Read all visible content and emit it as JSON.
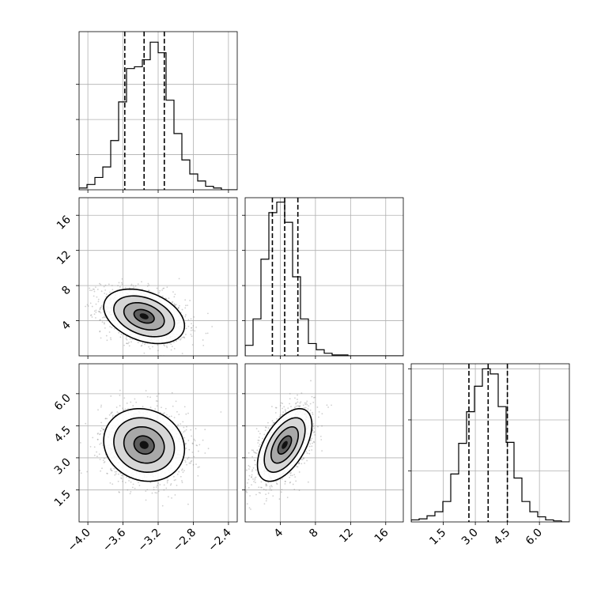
{
  "chart_data": {
    "type": "corner",
    "title": "",
    "parameters": [
      {
        "index": 0,
        "xlim": [
          -4.1,
          -2.3
        ],
        "ticks": [
          -4.0,
          -3.6,
          -3.2,
          -2.8,
          -2.4
        ],
        "tick_labels": [
          "−4.0",
          "−3.6",
          "−3.2",
          "−2.8",
          "−2.4"
        ],
        "quantiles": [
          -3.58,
          -3.36,
          -3.13
        ]
      },
      {
        "index": 1,
        "xlim": [
          0.0,
          18.0
        ],
        "ticks": [
          4,
          8,
          12,
          16
        ],
        "tick_labels": [
          "4",
          "8",
          "12",
          "16"
        ],
        "quantiles": [
          3.1,
          4.5,
          6.0
        ]
      },
      {
        "index": 2,
        "xlim": [
          0.0,
          7.4
        ],
        "ticks": [
          1.5,
          3.0,
          4.5,
          6.0
        ],
        "tick_labels": [
          "1.5",
          "3.0",
          "4.5",
          "6.0"
        ],
        "quantiles": [
          2.7,
          3.6,
          4.5
        ]
      }
    ],
    "histograms": [
      {
        "param": 0,
        "bin_start": -4.1,
        "bin_width": 0.09,
        "counts": [
          1,
          3,
          7,
          13,
          28,
          50,
          69,
          70,
          74,
          84,
          78,
          51,
          32,
          17,
          9,
          5,
          2,
          1,
          0,
          0
        ],
        "ymax": 90,
        "yticks": [
          20,
          40,
          60
        ]
      },
      {
        "param": 1,
        "bin_start": 0.0,
        "bin_width": 0.9,
        "counts": [
          12,
          42,
          110,
          163,
          175,
          152,
          90,
          42,
          14,
          7,
          3,
          1,
          1,
          0,
          0,
          0,
          0,
          0,
          0,
          0
        ],
        "ymax": 180,
        "yticks": [
          40,
          80,
          120,
          160
        ]
      },
      {
        "param": 2,
        "bin_start": 0.0,
        "bin_width": 0.37,
        "counts": [
          2,
          3,
          6,
          10,
          20,
          47,
          77,
          108,
          133,
          150,
          145,
          113,
          78,
          43,
          20,
          10,
          5,
          2,
          1,
          0
        ],
        "ymax": 155,
        "yticks": [
          50,
          100,
          150
        ]
      }
    ],
    "pairs": [
      {
        "x_param": 0,
        "y_param": 1,
        "mean": [
          -3.36,
          4.5
        ],
        "sd": [
          0.23,
          1.55
        ],
        "rho": -0.35
      },
      {
        "x_param": 0,
        "y_param": 2,
        "mean": [
          -3.36,
          3.6
        ],
        "sd": [
          0.23,
          0.85
        ],
        "rho": -0.12
      },
      {
        "x_param": 1,
        "y_param": 2,
        "mean": [
          4.5,
          3.6
        ],
        "sd": [
          1.55,
          0.85
        ],
        "rho": 0.55
      }
    ],
    "contour_levels_sigma": [
      0.5,
      1.0,
      1.5,
      2.0
    ],
    "grid": true,
    "legend": "none"
  }
}
